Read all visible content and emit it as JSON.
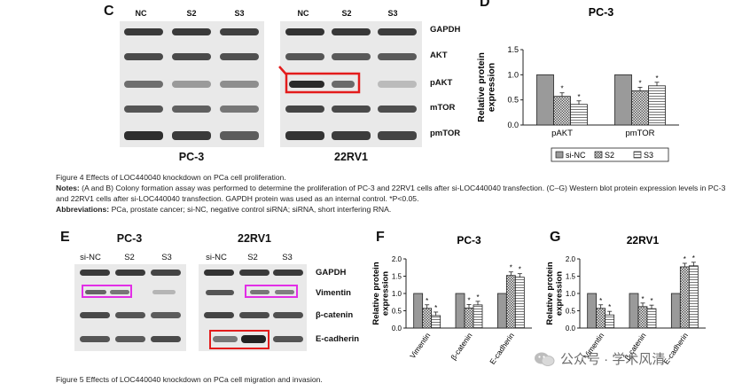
{
  "fig4": {
    "panel_c": {
      "letter": "C",
      "lanes_left": [
        "NC",
        "S2",
        "S3"
      ],
      "lanes_right": [
        "NC",
        "S2",
        "S3"
      ],
      "rows": [
        "GAPDH",
        "AKT",
        "pAKT",
        "mTOR",
        "pmTOR"
      ],
      "cell_left": "PC-3",
      "cell_right": "22RV1",
      "highlight_color": "#e31b1b"
    },
    "panel_d": {
      "letter": "D",
      "chart_data": {
        "type": "bar",
        "title": "PC-3",
        "ylabel": "Relative protein expression",
        "categories": [
          "pAKT",
          "pmTOR"
        ],
        "series": [
          {
            "name": "si-NC",
            "values": [
              1.0,
              1.0
            ]
          },
          {
            "name": "S2",
            "values": [
              0.57,
              0.68
            ]
          },
          {
            "name": "S3",
            "values": [
              0.41,
              0.78
            ]
          }
        ],
        "significance": [
          [
            "",
            "*",
            "*"
          ],
          [
            "",
            "*",
            "*"
          ]
        ],
        "ylim": [
          0,
          1.5
        ],
        "yticks": [
          "0.0",
          "0.5",
          "1.0",
          "1.5"
        ],
        "legend_placement": "bottom"
      }
    },
    "caption": {
      "title": "Figure 4 Effects of LOC440040 knockdown on PCa cell proliferation.",
      "notes_label": "Notes:",
      "notes": "(A and B) Colony formation assay was performed to determine the proliferation of PC-3 and 22RV1 cells after si-LOC440040 transfection. (C–G) Western blot protein expression levels in PC-3 and 22RV1 cells after si-LOC440040 transfection. GAPDH protein was used as an internal control. *P<0.05.",
      "abbr_label": "Abbreviations:",
      "abbr": "PCa, prostate cancer; si-NC, negative control siRNA; siRNA, short interfering RNA."
    }
  },
  "fig5": {
    "panel_e": {
      "letter": "E",
      "cell_left": "PC-3",
      "cell_right": "22RV1",
      "lanes_left": [
        "si-NC",
        "S2",
        "S3"
      ],
      "lanes_right": [
        "si-NC",
        "S2",
        "S3"
      ],
      "rows": [
        "GAPDH",
        "Vimentin",
        "β-catenin",
        "E-cadherin"
      ],
      "highlight_magenta": "#e22ee6",
      "highlight_red": "#e31b1b"
    },
    "panel_f": {
      "letter": "F",
      "chart_data": {
        "type": "bar",
        "title": "PC-3",
        "ylabel": "Relative protein expression",
        "categories": [
          "Vimentin",
          "β-catenin",
          "E-cadherin"
        ],
        "series": [
          {
            "name": "si-NC",
            "values": [
              1.0,
              1.0,
              1.0
            ]
          },
          {
            "name": "S2",
            "values": [
              0.57,
              0.58,
              1.52
            ]
          },
          {
            "name": "S3",
            "values": [
              0.36,
              0.67,
              1.47
            ]
          }
        ],
        "ylim": [
          0,
          2.0
        ],
        "yticks": [
          "0.0",
          "0.5",
          "1.0",
          "1.5",
          "2.0"
        ]
      }
    },
    "panel_g": {
      "letter": "G",
      "chart_data": {
        "type": "bar",
        "title": "22RV1",
        "ylabel": "Relative protein expression",
        "categories": [
          "Vimentin",
          "β-catenin",
          "E-cadherin"
        ],
        "series": [
          {
            "name": "si-NC",
            "values": [
              1.0,
              1.0,
              1.0
            ]
          },
          {
            "name": "S2",
            "values": [
              0.57,
              0.62,
              1.77
            ]
          },
          {
            "name": "S3",
            "values": [
              0.38,
              0.56,
              1.8
            ]
          }
        ],
        "ylim": [
          0,
          2.0
        ],
        "yticks": [
          "0.0",
          "0.5",
          "1.0",
          "1.5",
          "2.0"
        ]
      }
    },
    "caption": {
      "title": "Figure 5 Effects of LOC440040 knockdown on PCa cell migration and invasion."
    }
  },
  "watermark": {
    "text": "公众号 · 学术风清",
    "icon": "wechat-icon"
  }
}
